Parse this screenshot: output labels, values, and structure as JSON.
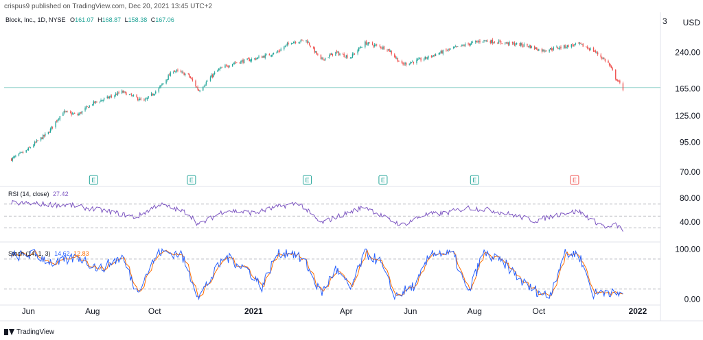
{
  "header": {
    "text": "crispus9 published on TradingView.com, Dec 20, 2021 13:45 UTC+2"
  },
  "legend": {
    "symbol": "Block, Inc., 1D, NYSE",
    "open_label": "O",
    "open": "161.07",
    "high_label": "H",
    "high": "168.87",
    "low_label": "L",
    "low": "158.38",
    "close_label": "C",
    "close": "167.06"
  },
  "price_axis": {
    "currency": "USD",
    "top_label": "3",
    "ticks": [
      "240.00",
      "165.00",
      "125.00",
      "95.00",
      "70.00"
    ],
    "scale": "log"
  },
  "rsi": {
    "label": "RSI (14, close)",
    "value": "27.42",
    "ticks": [
      "80.00",
      "40.00"
    ]
  },
  "stoch": {
    "label": "Stoch (14, 1, 3)",
    "k_value": "14.62",
    "d_value": "12.83",
    "ticks": [
      "100.00",
      "0.00"
    ]
  },
  "time_axis": {
    "labels": [
      "Jun",
      "Aug",
      "Oct",
      "2021",
      "Apr",
      "Jun",
      "Aug",
      "Oct",
      "2022"
    ]
  },
  "earnings_marker_label": "E",
  "footer": {
    "brand": "TradingView"
  },
  "colors": {
    "up": "#26a69a",
    "down": "#ef5350",
    "rsi": "#7e57c2",
    "stoch_k": "#2962ff",
    "stoch_d": "#ff6d00",
    "price_line": "#26a69a",
    "grid": "#e0e3eb"
  },
  "chart_data": {
    "type": "candlestick",
    "title": "Block, Inc., 1D, NYSE",
    "y_scale": "log",
    "ylim": [
      62,
      320
    ],
    "last_close": 167.06,
    "price_path": [
      {
        "x": "2020-05-18",
        "y": 80
      },
      {
        "x": "2020-06-01",
        "y": 87
      },
      {
        "x": "2020-06-22",
        "y": 105
      },
      {
        "x": "2020-07-06",
        "y": 130
      },
      {
        "x": "2020-07-20",
        "y": 126
      },
      {
        "x": "2020-08-03",
        "y": 142
      },
      {
        "x": "2020-08-17",
        "y": 150
      },
      {
        "x": "2020-08-31",
        "y": 160
      },
      {
        "x": "2020-09-21",
        "y": 145
      },
      {
        "x": "2020-10-05",
        "y": 165
      },
      {
        "x": "2020-10-19",
        "y": 200
      },
      {
        "x": "2020-11-02",
        "y": 190
      },
      {
        "x": "2020-11-12",
        "y": 162
      },
      {
        "x": "2020-11-30",
        "y": 200
      },
      {
        "x": "2020-12-14",
        "y": 215
      },
      {
        "x": "2021-01-04",
        "y": 225
      },
      {
        "x": "2021-01-25",
        "y": 240
      },
      {
        "x": "2021-02-08",
        "y": 268
      },
      {
        "x": "2021-02-22",
        "y": 272
      },
      {
        "x": "2021-03-08",
        "y": 222
      },
      {
        "x": "2021-03-22",
        "y": 240
      },
      {
        "x": "2021-04-05",
        "y": 228
      },
      {
        "x": "2021-04-19",
        "y": 265
      },
      {
        "x": "2021-05-10",
        "y": 250
      },
      {
        "x": "2021-05-24",
        "y": 212
      },
      {
        "x": "2021-06-14",
        "y": 225
      },
      {
        "x": "2021-07-05",
        "y": 245
      },
      {
        "x": "2021-07-26",
        "y": 262
      },
      {
        "x": "2021-08-09",
        "y": 272
      },
      {
        "x": "2021-08-30",
        "y": 265
      },
      {
        "x": "2021-09-20",
        "y": 258
      },
      {
        "x": "2021-10-04",
        "y": 245
      },
      {
        "x": "2021-10-25",
        "y": 255
      },
      {
        "x": "2021-11-08",
        "y": 262
      },
      {
        "x": "2021-11-22",
        "y": 245
      },
      {
        "x": "2021-12-06",
        "y": 215
      },
      {
        "x": "2021-12-13",
        "y": 185
      },
      {
        "x": "2021-12-20",
        "y": 165
      }
    ],
    "earnings_dates": [
      {
        "x": "2020-08-04",
        "type": "past"
      },
      {
        "x": "2020-11-05",
        "type": "past"
      },
      {
        "x": "2021-02-23",
        "type": "past"
      },
      {
        "x": "2021-05-06",
        "type": "past"
      },
      {
        "x": "2021-08-01",
        "type": "past"
      },
      {
        "x": "2021-11-04",
        "type": "negative"
      }
    ],
    "rsi": {
      "ylim": [
        10,
        95
      ],
      "levels": [
        70,
        50,
        30
      ],
      "path": [
        {
          "x": "2020-05-18",
          "y": 72
        },
        {
          "x": "2020-06-15",
          "y": 70
        },
        {
          "x": "2020-07-13",
          "y": 68
        },
        {
          "x": "2020-08-03",
          "y": 62
        },
        {
          "x": "2020-08-17",
          "y": 58
        },
        {
          "x": "2020-09-14",
          "y": 48
        },
        {
          "x": "2020-10-05",
          "y": 70
        },
        {
          "x": "2020-11-02",
          "y": 55
        },
        {
          "x": "2020-11-12",
          "y": 35
        },
        {
          "x": "2020-12-07",
          "y": 60
        },
        {
          "x": "2021-01-04",
          "y": 55
        },
        {
          "x": "2021-01-25",
          "y": 65
        },
        {
          "x": "2021-02-15",
          "y": 72
        },
        {
          "x": "2021-03-08",
          "y": 38
        },
        {
          "x": "2021-03-22",
          "y": 48
        },
        {
          "x": "2021-04-19",
          "y": 66
        },
        {
          "x": "2021-05-10",
          "y": 45
        },
        {
          "x": "2021-05-24",
          "y": 35
        },
        {
          "x": "2021-06-14",
          "y": 52
        },
        {
          "x": "2021-07-05",
          "y": 55
        },
        {
          "x": "2021-07-26",
          "y": 64
        },
        {
          "x": "2021-08-16",
          "y": 60
        },
        {
          "x": "2021-09-06",
          "y": 52
        },
        {
          "x": "2021-09-27",
          "y": 42
        },
        {
          "x": "2021-10-25",
          "y": 55
        },
        {
          "x": "2021-11-08",
          "y": 58
        },
        {
          "x": "2021-11-22",
          "y": 42
        },
        {
          "x": "2021-12-06",
          "y": 30
        },
        {
          "x": "2021-12-13",
          "y": 35
        },
        {
          "x": "2021-12-20",
          "y": 27.42
        }
      ]
    },
    "stoch": {
      "ylim": [
        -5,
        110
      ],
      "levels": [
        80,
        20
      ],
      "k_path": [
        {
          "x": "2020-05-18",
          "y": 85
        },
        {
          "x": "2020-06-08",
          "y": 90
        },
        {
          "x": "2020-06-29",
          "y": 70
        },
        {
          "x": "2020-07-20",
          "y": 85
        },
        {
          "x": "2020-08-10",
          "y": 60
        },
        {
          "x": "2020-08-31",
          "y": 85
        },
        {
          "x": "2020-09-14",
          "y": 15
        },
        {
          "x": "2020-10-05",
          "y": 95
        },
        {
          "x": "2020-10-26",
          "y": 90
        },
        {
          "x": "2020-11-12",
          "y": 5
        },
        {
          "x": "2020-12-07",
          "y": 85
        },
        {
          "x": "2020-12-28",
          "y": 60
        },
        {
          "x": "2021-01-11",
          "y": 25
        },
        {
          "x": "2021-01-25",
          "y": 90
        },
        {
          "x": "2021-02-08",
          "y": 95
        },
        {
          "x": "2021-02-22",
          "y": 70
        },
        {
          "x": "2021-03-08",
          "y": 10
        },
        {
          "x": "2021-03-22",
          "y": 60
        },
        {
          "x": "2021-04-05",
          "y": 20
        },
        {
          "x": "2021-04-19",
          "y": 92
        },
        {
          "x": "2021-05-03",
          "y": 75
        },
        {
          "x": "2021-05-17",
          "y": 5
        },
        {
          "x": "2021-06-07",
          "y": 30
        },
        {
          "x": "2021-06-21",
          "y": 95
        },
        {
          "x": "2021-07-12",
          "y": 88
        },
        {
          "x": "2021-07-26",
          "y": 10
        },
        {
          "x": "2021-08-09",
          "y": 92
        },
        {
          "x": "2021-08-30",
          "y": 70
        },
        {
          "x": "2021-09-20",
          "y": 25
        },
        {
          "x": "2021-10-11",
          "y": 5
        },
        {
          "x": "2021-10-25",
          "y": 90
        },
        {
          "x": "2021-11-08",
          "y": 90
        },
        {
          "x": "2021-11-22",
          "y": 10
        },
        {
          "x": "2021-12-06",
          "y": 18
        },
        {
          "x": "2021-12-13",
          "y": 5
        },
        {
          "x": "2021-12-20",
          "y": 14.62
        }
      ]
    }
  }
}
